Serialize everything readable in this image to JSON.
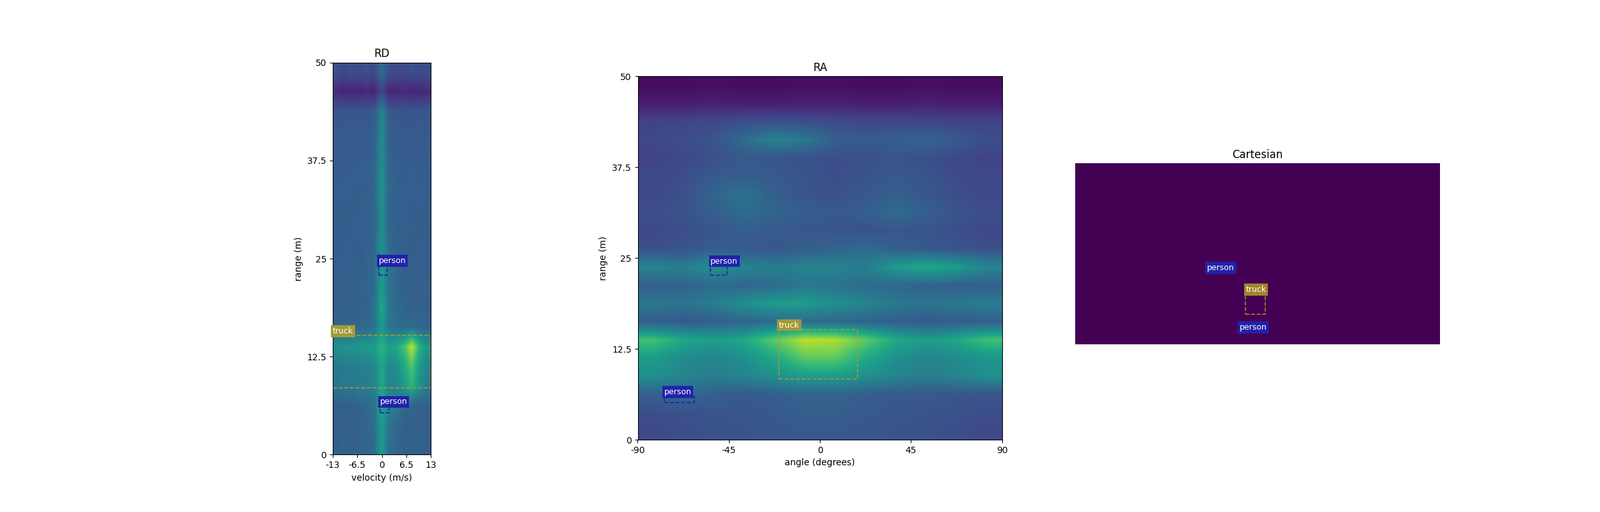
{
  "chart_data": [
    {
      "type": "heatmap",
      "title": "RD",
      "x_label": "velocity (m/s)",
      "y_label": "range (m)",
      "xlim": [
        -13,
        13
      ],
      "ylim": [
        0,
        50
      ],
      "xticks": [
        -13,
        -6.5,
        0,
        6.5,
        13
      ],
      "yticks": [
        0,
        12.5,
        25,
        37.5,
        50
      ],
      "value_range": [
        0,
        1
      ],
      "cells": [
        [
          0.3,
          0.32,
          0.3,
          0.31,
          0.33,
          0.35,
          0.55,
          0.36,
          0.33,
          0.31,
          0.3,
          0.32,
          0.3
        ],
        [
          0.3,
          0.3,
          0.31,
          0.3,
          0.32,
          0.36,
          0.55,
          0.38,
          0.34,
          0.3,
          0.31,
          0.3,
          0.3
        ],
        [
          0.3,
          0.31,
          0.3,
          0.32,
          0.34,
          0.38,
          0.58,
          0.45,
          0.4,
          0.33,
          0.32,
          0.3,
          0.31
        ],
        [
          0.38,
          0.4,
          0.4,
          0.42,
          0.42,
          0.44,
          0.6,
          0.45,
          0.46,
          0.55,
          0.65,
          0.5,
          0.42
        ],
        [
          0.4,
          0.42,
          0.42,
          0.43,
          0.44,
          0.46,
          0.6,
          0.47,
          0.5,
          0.6,
          0.72,
          0.55,
          0.45
        ],
        [
          0.5,
          0.52,
          0.52,
          0.53,
          0.54,
          0.55,
          0.65,
          0.56,
          0.6,
          0.7,
          0.9,
          0.65,
          0.52
        ],
        [
          0.32,
          0.33,
          0.32,
          0.33,
          0.34,
          0.36,
          0.55,
          0.38,
          0.36,
          0.34,
          0.35,
          0.33,
          0.32
        ],
        [
          0.3,
          0.3,
          0.31,
          0.3,
          0.32,
          0.38,
          0.6,
          0.4,
          0.34,
          0.32,
          0.3,
          0.31,
          0.3
        ],
        [
          0.3,
          0.31,
          0.3,
          0.31,
          0.32,
          0.35,
          0.55,
          0.36,
          0.33,
          0.31,
          0.3,
          0.3,
          0.31
        ],
        [
          0.3,
          0.3,
          0.31,
          0.3,
          0.32,
          0.34,
          0.55,
          0.4,
          0.33,
          0.3,
          0.31,
          0.3,
          0.3
        ],
        [
          0.29,
          0.3,
          0.3,
          0.29,
          0.31,
          0.33,
          0.5,
          0.34,
          0.31,
          0.3,
          0.29,
          0.3,
          0.3
        ],
        [
          0.3,
          0.29,
          0.3,
          0.3,
          0.3,
          0.32,
          0.5,
          0.33,
          0.3,
          0.31,
          0.3,
          0.29,
          0.3
        ],
        [
          0.29,
          0.3,
          0.29,
          0.3,
          0.31,
          0.32,
          0.5,
          0.32,
          0.3,
          0.3,
          0.29,
          0.3,
          0.29
        ],
        [
          0.3,
          0.3,
          0.3,
          0.29,
          0.3,
          0.33,
          0.52,
          0.33,
          0.31,
          0.3,
          0.3,
          0.3,
          0.3
        ],
        [
          0.29,
          0.29,
          0.3,
          0.3,
          0.3,
          0.32,
          0.5,
          0.32,
          0.3,
          0.29,
          0.3,
          0.29,
          0.3
        ],
        [
          0.28,
          0.29,
          0.28,
          0.29,
          0.3,
          0.31,
          0.48,
          0.31,
          0.29,
          0.28,
          0.29,
          0.28,
          0.29
        ],
        [
          0.28,
          0.28,
          0.29,
          0.28,
          0.29,
          0.3,
          0.48,
          0.3,
          0.29,
          0.28,
          0.28,
          0.29,
          0.28
        ],
        [
          0.26,
          0.27,
          0.26,
          0.27,
          0.27,
          0.28,
          0.45,
          0.28,
          0.27,
          0.26,
          0.27,
          0.26,
          0.27
        ],
        [
          0.12,
          0.1,
          0.11,
          0.1,
          0.12,
          0.1,
          0.2,
          0.1,
          0.11,
          0.12,
          0.1,
          0.11,
          0.12
        ],
        [
          0.25,
          0.22,
          0.24,
          0.23,
          0.25,
          0.22,
          0.35,
          0.24,
          0.23,
          0.22,
          0.25,
          0.23,
          0.24
        ]
      ],
      "boxes": [
        {
          "label": "truck",
          "color": "#a39a3a",
          "x": [
            -13,
            13
          ],
          "y": [
            8.5,
            15.2
          ]
        },
        {
          "label": "person",
          "color": "#2222aa",
          "x": [
            -0.8,
            1.5
          ],
          "y": [
            22.9,
            24.2
          ]
        },
        {
          "label": "person",
          "color": "#2222aa",
          "x": [
            -0.5,
            2
          ],
          "y": [
            5.3,
            6.2
          ]
        }
      ]
    },
    {
      "type": "heatmap",
      "title": "RA",
      "x_label": "angle (degrees)",
      "y_label": "range (m)",
      "xlim": [
        -90,
        90
      ],
      "ylim": [
        0,
        50
      ],
      "xticks": [
        -90,
        -45,
        0,
        45,
        90
      ],
      "yticks": [
        0,
        12.5,
        25,
        37.5,
        50
      ],
      "value_range": [
        0,
        1
      ],
      "cells": [
        [
          0.22,
          0.24,
          0.25,
          0.26,
          0.27,
          0.28,
          0.28,
          0.27,
          0.26,
          0.25,
          0.24,
          0.22
        ],
        [
          0.24,
          0.25,
          0.26,
          0.27,
          0.28,
          0.3,
          0.3,
          0.28,
          0.27,
          0.26,
          0.25,
          0.24
        ],
        [
          0.3,
          0.35,
          0.3,
          0.28,
          0.3,
          0.32,
          0.32,
          0.3,
          0.28,
          0.28,
          0.27,
          0.26
        ],
        [
          0.5,
          0.45,
          0.42,
          0.45,
          0.5,
          0.55,
          0.55,
          0.5,
          0.45,
          0.42,
          0.45,
          0.5
        ],
        [
          0.55,
          0.48,
          0.45,
          0.5,
          0.6,
          0.75,
          0.75,
          0.6,
          0.5,
          0.45,
          0.48,
          0.52
        ],
        [
          0.7,
          0.6,
          0.55,
          0.6,
          0.75,
          0.9,
          0.88,
          0.75,
          0.6,
          0.55,
          0.6,
          0.7
        ],
        [
          0.3,
          0.28,
          0.3,
          0.32,
          0.35,
          0.35,
          0.33,
          0.32,
          0.3,
          0.28,
          0.3,
          0.3
        ],
        [
          0.4,
          0.38,
          0.42,
          0.5,
          0.55,
          0.55,
          0.5,
          0.45,
          0.4,
          0.38,
          0.4,
          0.42
        ],
        [
          0.3,
          0.32,
          0.35,
          0.33,
          0.35,
          0.4,
          0.38,
          0.35,
          0.33,
          0.32,
          0.3,
          0.3
        ],
        [
          0.45,
          0.42,
          0.5,
          0.45,
          0.42,
          0.45,
          0.45,
          0.42,
          0.55,
          0.6,
          0.55,
          0.45
        ],
        [
          0.25,
          0.26,
          0.3,
          0.28,
          0.27,
          0.3,
          0.32,
          0.35,
          0.3,
          0.28,
          0.26,
          0.25
        ],
        [
          0.22,
          0.24,
          0.26,
          0.3,
          0.28,
          0.27,
          0.26,
          0.25,
          0.27,
          0.26,
          0.24,
          0.22
        ],
        [
          0.24,
          0.26,
          0.3,
          0.35,
          0.32,
          0.3,
          0.28,
          0.3,
          0.35,
          0.3,
          0.26,
          0.24
        ],
        [
          0.22,
          0.25,
          0.32,
          0.38,
          0.3,
          0.26,
          0.25,
          0.28,
          0.3,
          0.27,
          0.24,
          0.22
        ],
        [
          0.22,
          0.24,
          0.28,
          0.3,
          0.28,
          0.26,
          0.24,
          0.26,
          0.28,
          0.26,
          0.23,
          0.22
        ],
        [
          0.2,
          0.22,
          0.25,
          0.28,
          0.26,
          0.25,
          0.24,
          0.25,
          0.26,
          0.24,
          0.22,
          0.2
        ],
        [
          0.22,
          0.24,
          0.26,
          0.35,
          0.45,
          0.4,
          0.3,
          0.28,
          0.3,
          0.32,
          0.28,
          0.24
        ],
        [
          0.2,
          0.21,
          0.22,
          0.24,
          0.25,
          0.24,
          0.23,
          0.22,
          0.22,
          0.21,
          0.2,
          0.2
        ],
        [
          0.08,
          0.08,
          0.09,
          0.08,
          0.08,
          0.09,
          0.09,
          0.08,
          0.08,
          0.09,
          0.08,
          0.08
        ],
        [
          0.03,
          0.03,
          0.04,
          0.03,
          0.03,
          0.04,
          0.04,
          0.03,
          0.03,
          0.04,
          0.03,
          0.03
        ]
      ],
      "boxes": [
        {
          "label": "truck",
          "color": "#a39a3a",
          "x": [
            -20.3,
            18.6
          ],
          "y": [
            8.4,
            15.2
          ]
        },
        {
          "label": "person",
          "color": "#2222aa",
          "x": [
            -54,
            -46
          ],
          "y": [
            22.6,
            24.0
          ]
        },
        {
          "label": "person",
          "color": "#2222aa",
          "x": [
            -77,
            -62
          ],
          "y": [
            5.1,
            6.0
          ]
        }
      ]
    },
    {
      "type": "heatmap",
      "title": "Cartesian",
      "xlim": [
        -50,
        50
      ],
      "ylim": [
        0,
        50
      ],
      "tick_labels": false,
      "value_range": [
        0,
        1
      ],
      "cells": [
        [
          0
        ]
      ],
      "boxes": [
        {
          "label": "person",
          "color": "#2222aa",
          "x": [
            -13.8,
            -12.5
          ],
          "y": [
            19.5,
            20.0
          ]
        },
        {
          "label": "truck",
          "color": "#a0852a",
          "x": [
            -3.2,
            2.1
          ],
          "y": [
            8.4,
            14.0
          ]
        },
        {
          "label": "person",
          "color": "#2222aa",
          "x": [
            -4.9,
            -3.5
          ],
          "y": [
            3.1,
            3.6
          ]
        }
      ]
    }
  ]
}
